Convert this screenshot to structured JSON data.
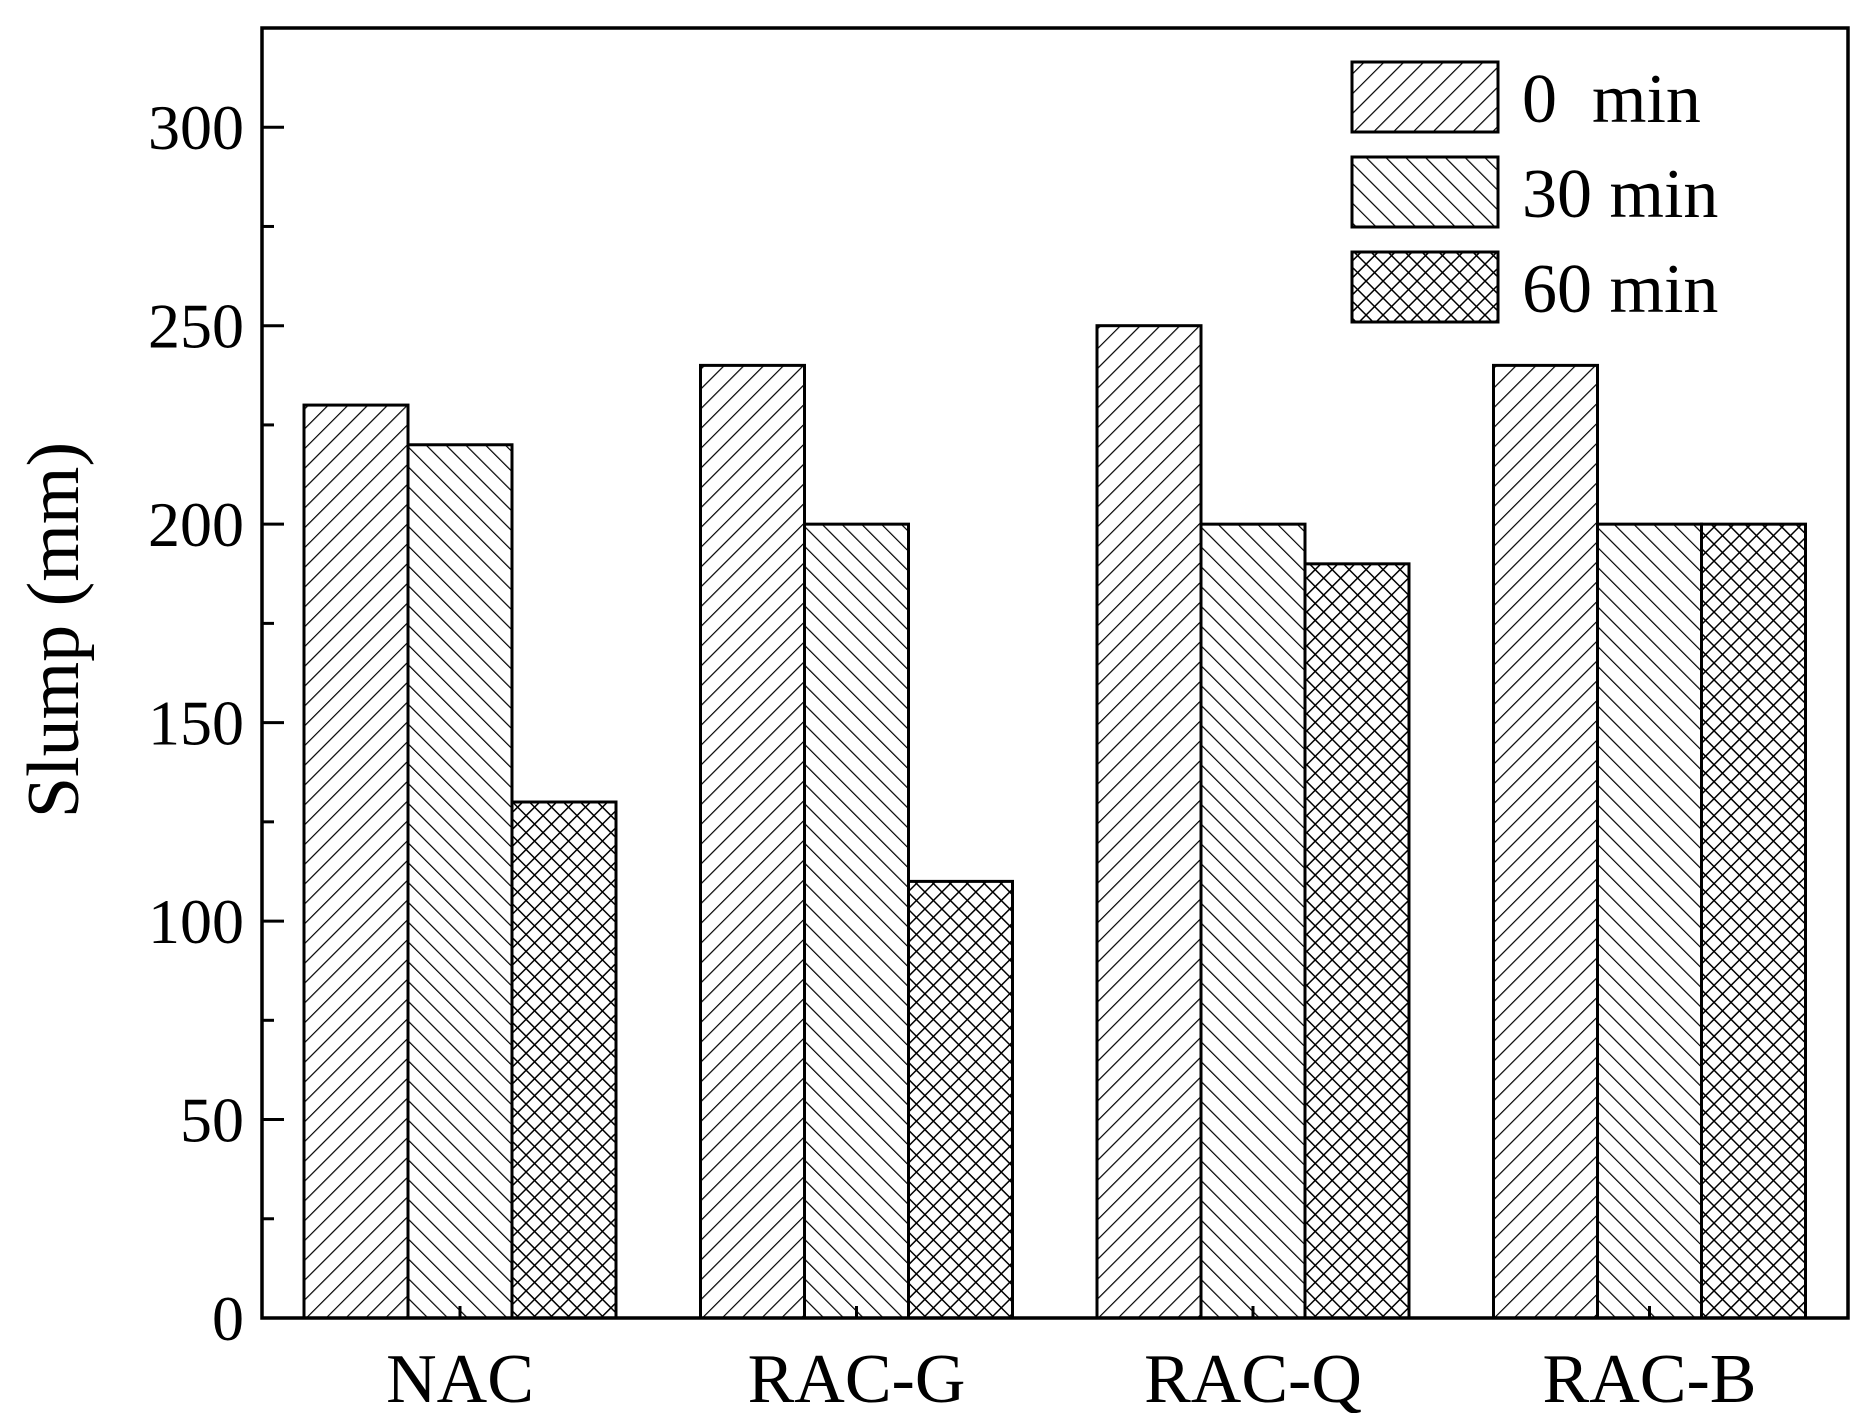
{
  "chart_data": {
    "type": "bar",
    "title": "",
    "xlabel": "",
    "ylabel": "Slump (mm)",
    "ylim": [
      0,
      325
    ],
    "yticks": [
      0,
      50,
      100,
      150,
      200,
      250,
      300
    ],
    "yticklabels": [
      "0",
      "50",
      "100",
      "150",
      "200",
      "250",
      "300"
    ],
    "categories": [
      "NAC",
      "RAC-G",
      "RAC-Q",
      "RAC-B"
    ],
    "series": [
      {
        "name": "0  min",
        "pattern": "diag-up",
        "values": [
          230,
          240,
          250,
          240
        ]
      },
      {
        "name": "30 min",
        "pattern": "diag-down",
        "values": [
          220,
          200,
          200,
          200
        ]
      },
      {
        "name": "60 min",
        "pattern": "crosshatch",
        "values": [
          130,
          110,
          190,
          200
        ]
      }
    ],
    "legend_position": "top-right",
    "grid": false,
    "colors": {
      "stroke": "#000000",
      "fill": "#ffffff"
    }
  }
}
